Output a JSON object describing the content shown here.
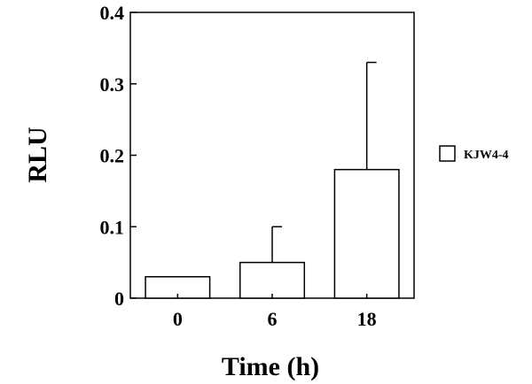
{
  "chart_data": {
    "type": "bar",
    "categories": [
      "0",
      "6",
      "18"
    ],
    "series": [
      {
        "name": "KJW4-4",
        "values": [
          0.03,
          0.05,
          0.18
        ],
        "error_upper": [
          0.0,
          0.05,
          0.15
        ]
      }
    ],
    "title": "",
    "xlabel": "Time (h)",
    "ylabel": "RLU",
    "ylim": [
      0,
      0.4
    ],
    "yticks": [
      0,
      0.1,
      0.2,
      0.3,
      0.4
    ],
    "ytick_labels": [
      "0",
      "0.1",
      "0.2",
      "0.3",
      "0.4"
    ],
    "grid": false,
    "legend_position": "right",
    "colors": {
      "bar_fill": "#ffffff",
      "stroke": "#000000"
    }
  }
}
